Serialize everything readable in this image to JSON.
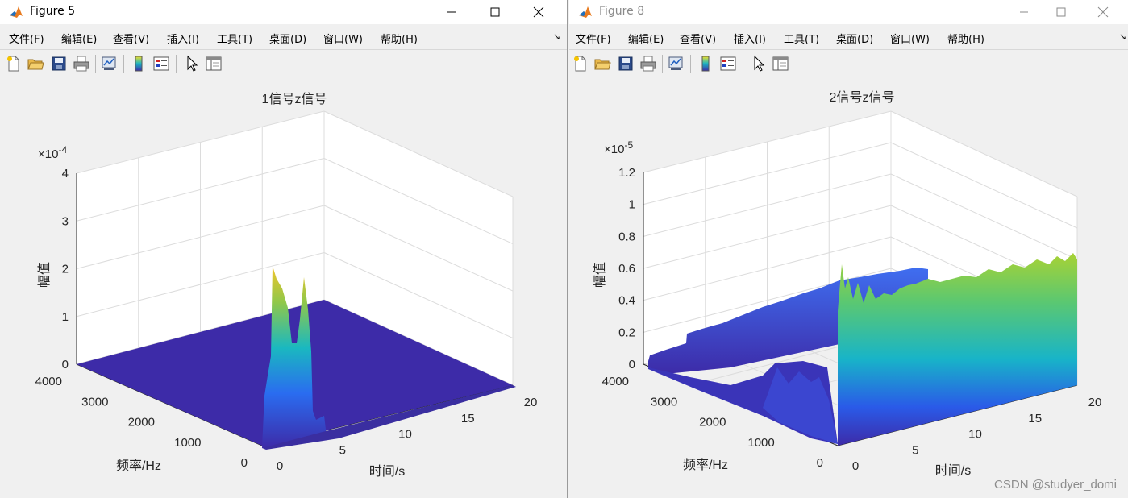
{
  "windows": [
    {
      "title": "Figure 5",
      "active": true,
      "menu": [
        "文件(F)",
        "编辑(E)",
        "查看(V)",
        "插入(I)",
        "工具(T)",
        "桌面(D)",
        "窗口(W)",
        "帮助(H)"
      ],
      "toolbar_icons": [
        "new-file-icon",
        "open-folder-icon",
        "save-icon",
        "print-icon",
        "link-plot-icon",
        "colorbar-icon",
        "legend-icon",
        "pointer-icon",
        "property-editor-icon"
      ]
    },
    {
      "title": "Figure 8",
      "active": false,
      "menu": [
        "文件(F)",
        "编辑(E)",
        "查看(V)",
        "插入(I)",
        "工具(T)",
        "桌面(D)",
        "窗口(W)",
        "帮助(H)"
      ],
      "toolbar_icons": [
        "new-file-icon",
        "open-folder-icon",
        "save-icon",
        "print-icon",
        "link-plot-icon",
        "colorbar-icon",
        "legend-icon",
        "pointer-icon",
        "property-editor-icon"
      ]
    }
  ],
  "chart_data": [
    {
      "type": "surface",
      "title": "1信号z信号",
      "xlabel": "时间/s",
      "ylabel": "频率/Hz",
      "zlabel": "幅值",
      "x_ticks": [
        "0",
        "5",
        "10",
        "15",
        "20"
      ],
      "y_ticks": [
        "0",
        "1000",
        "2000",
        "3000",
        "4000"
      ],
      "z_ticks": [
        "0",
        "1",
        "2",
        "3",
        "4"
      ],
      "z_exponent": "×10^-4",
      "xlim": [
        0,
        20
      ],
      "ylim": [
        0,
        4000
      ],
      "zlim": [
        0,
        0.0004
      ],
      "grid": true,
      "surface_color": "#3d2ba8",
      "peaks": [
        {
          "x": 0.3,
          "freq": 180,
          "value": 0.00021
        },
        {
          "x": 0.8,
          "freq": 140,
          "value": 0.00016
        },
        {
          "x": 1.2,
          "freq": 110,
          "value": 0.00021
        }
      ]
    },
    {
      "type": "surface",
      "title": "2信号z信号",
      "xlabel": "时间/s",
      "ylabel": "频率/Hz",
      "zlabel": "幅值",
      "x_ticks": [
        "0",
        "5",
        "10",
        "15",
        "20"
      ],
      "y_ticks": [
        "0",
        "1000",
        "2000",
        "3000",
        "4000"
      ],
      "z_ticks": [
        "0",
        "0.2",
        "0.4",
        "0.6",
        "0.8",
        "1",
        "1.2"
      ],
      "z_exponent": "×10^-5",
      "xlim": [
        0,
        20
      ],
      "ylim": [
        0,
        4000
      ],
      "zlim": [
        0,
        1.2e-05
      ],
      "grid": true,
      "front_wall": {
        "x_start": 0.3,
        "freq": 0,
        "height_start": 4.8e-06,
        "height_end": 6.5e-06
      }
    }
  ],
  "watermark": "CSDN @studyer_domi"
}
